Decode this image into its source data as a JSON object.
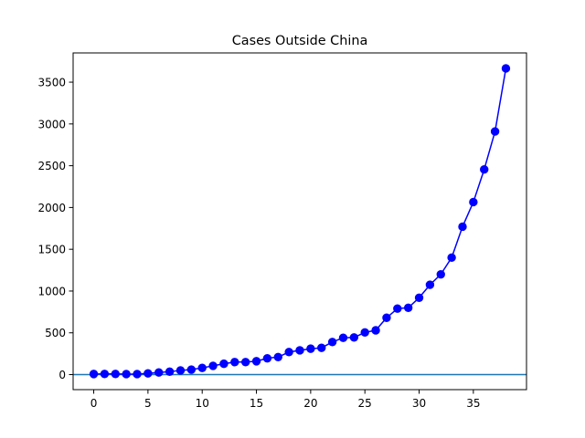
{
  "chart_data": {
    "type": "line",
    "title": "Cases Outside China",
    "xlabel": "",
    "ylabel": "",
    "xlim": [
      -1.9,
      39.9
    ],
    "ylim": [
      -180,
      3850
    ],
    "xticks": [
      0,
      5,
      10,
      15,
      20,
      25,
      30,
      35
    ],
    "yticks": [
      0,
      500,
      1000,
      1500,
      2000,
      2500,
      3000,
      3500
    ],
    "grid": false,
    "legend": "none",
    "colors": {
      "series": "#0000ff",
      "baseline": "#1f77b4",
      "axes": "#000000"
    },
    "series": [
      {
        "marker": "circle",
        "x": [
          0,
          1,
          2,
          3,
          4,
          5,
          6,
          7,
          8,
          9,
          10,
          11,
          12,
          13,
          14,
          15,
          16,
          17,
          18,
          19,
          20,
          21,
          22,
          23,
          24,
          25,
          26,
          27,
          28,
          29,
          30,
          31,
          32,
          33,
          34,
          35,
          36,
          37,
          38
        ],
        "values": [
          7,
          8,
          8,
          6,
          6,
          15,
          25,
          35,
          50,
          60,
          80,
          105,
          130,
          150,
          150,
          160,
          195,
          210,
          270,
          290,
          310,
          320,
          390,
          440,
          445,
          505,
          530,
          680,
          790,
          800,
          920,
          1075,
          1200,
          1400,
          1770,
          2065,
          2455,
          2910,
          3665
        ]
      }
    ],
    "hlines": [
      {
        "y": 0
      }
    ]
  }
}
